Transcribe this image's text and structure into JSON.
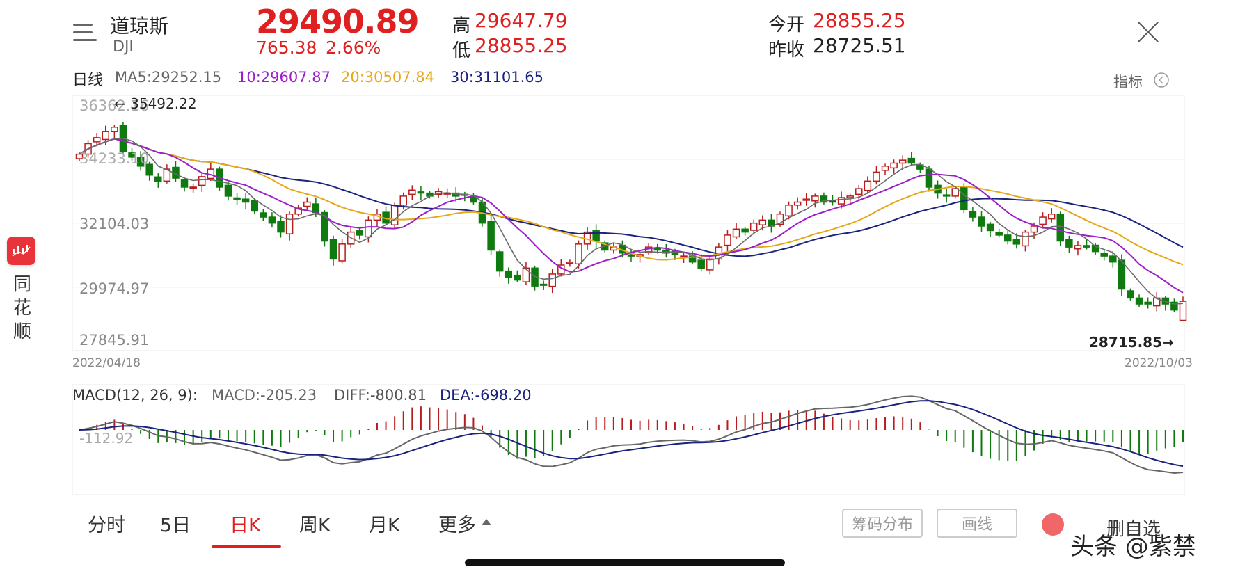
{
  "header": {
    "name": "道琼斯",
    "code": "DJI",
    "price": "29490.89",
    "change": "765.38",
    "change_pct": "2.66%",
    "high_label": "高",
    "high_value": "29647.79",
    "low_label": "低",
    "low_value": "28855.25",
    "open_label": "今开",
    "open_value": "28855.25",
    "prev_close_label": "昨收",
    "prev_close_value": "28725.51"
  },
  "ma_legend": {
    "period_label": "日线",
    "ma5": "MA5:29252.15",
    "ma10": "10:29607.87",
    "ma20": "20:30507.84",
    "ma30": "30:31101.65",
    "indicator_label": "指标"
  },
  "price_axis": {
    "tick_1": "36362.16",
    "tick_2": "34233.10",
    "tick_3": "32104.03",
    "tick_4": "29974.97",
    "tick_5": "27845.91"
  },
  "price_chart": {
    "max_label": "← 35492.22",
    "min_label": "28715.85→",
    "start_date": "2022/04/18",
    "end_date": "2022/10/03"
  },
  "macd": {
    "label": "MACD(12, 26, 9):",
    "macd_value": "MACD:-205.23",
    "diff_value": "DIFF:-800.81",
    "dea_value": "DEA:-698.20",
    "zero_label": "-112.92"
  },
  "tabs": [
    "分时",
    "5日",
    "日K",
    "周K",
    "月K",
    "更多"
  ],
  "tools": {
    "chip_distribution": "筹码分布",
    "draw_line": "画线",
    "delete_watch": "删自选"
  },
  "sidebar": {
    "app_name": "同花顺"
  },
  "watermark": "头条 @紫禁",
  "colors": {
    "up": "#b81d1d",
    "down": "#0f7a0f",
    "ma5": "#6b6b6b",
    "ma10": "#9b1fc9",
    "ma20": "#e6a817",
    "ma30": "#1a237e",
    "accent": "#e02020"
  },
  "chart_data": {
    "type": "candlestick",
    "date_range": [
      "2022/04/18",
      "2022/10/03"
    ],
    "y_axis_ticks": [
      36362.16,
      34233.1,
      32104.03,
      29974.97,
      27845.91
    ],
    "ylim": [
      27845.91,
      36362.16
    ],
    "annotated_high": 35492.22,
    "annotated_low": 28715.85,
    "last_bar": {
      "open": 28855.25,
      "high": 29647.79,
      "low": 28855.25,
      "close": 29490.89
    },
    "close_series": [
      34400,
      34750,
      34950,
      35150,
      35300,
      34500,
      34300,
      34000,
      33700,
      33500,
      33900,
      33600,
      33300,
      33300,
      33650,
      33900,
      33300,
      33000,
      32900,
      32800,
      32500,
      32300,
      32100,
      31800,
      32400,
      32600,
      32800,
      32450,
      31500,
      30900,
      31400,
      31800,
      31700,
      32200,
      32400,
      32100,
      32700,
      33000,
      33200,
      33100,
      33000,
      33150,
      33100,
      33000,
      33050,
      32800,
      32100,
      31200,
      30500,
      30300,
      30200,
      30600,
      30000,
      30050,
      30400,
      30700,
      30800,
      31400,
      31800,
      31500,
      31200,
      31300,
      31100,
      31000,
      31050,
      31300,
      31200,
      31100,
      31050,
      31000,
      30800,
      30600,
      30900,
      31300,
      31700,
      31900,
      31800,
      32100,
      32200,
      32000,
      32400,
      32700,
      32800,
      32900,
      33000,
      32800,
      32800,
      32950,
      33000,
      33250,
      33500,
      33800,
      34000,
      34100,
      34200,
      34100,
      33900,
      33300,
      33100,
      33000,
      33250,
      32550,
      32300,
      32000,
      31850,
      31700,
      31500,
      31400,
      31800,
      32000,
      32300,
      32400,
      31500,
      31300,
      31350,
      31300,
      31150,
      31000,
      30800,
      29900,
      29600,
      29400,
      29400,
      29600,
      29400,
      29200,
      29491
    ],
    "ma_series": [
      {
        "name": "MA5",
        "value": 29252.15
      },
      {
        "name": "MA10",
        "value": 29607.87
      },
      {
        "name": "MA20",
        "value": 30507.84
      },
      {
        "name": "MA30",
        "value": 31101.65
      }
    ],
    "macd": {
      "MACD": -205.23,
      "DIFF": -800.81,
      "DEA": -698.2
    }
  }
}
